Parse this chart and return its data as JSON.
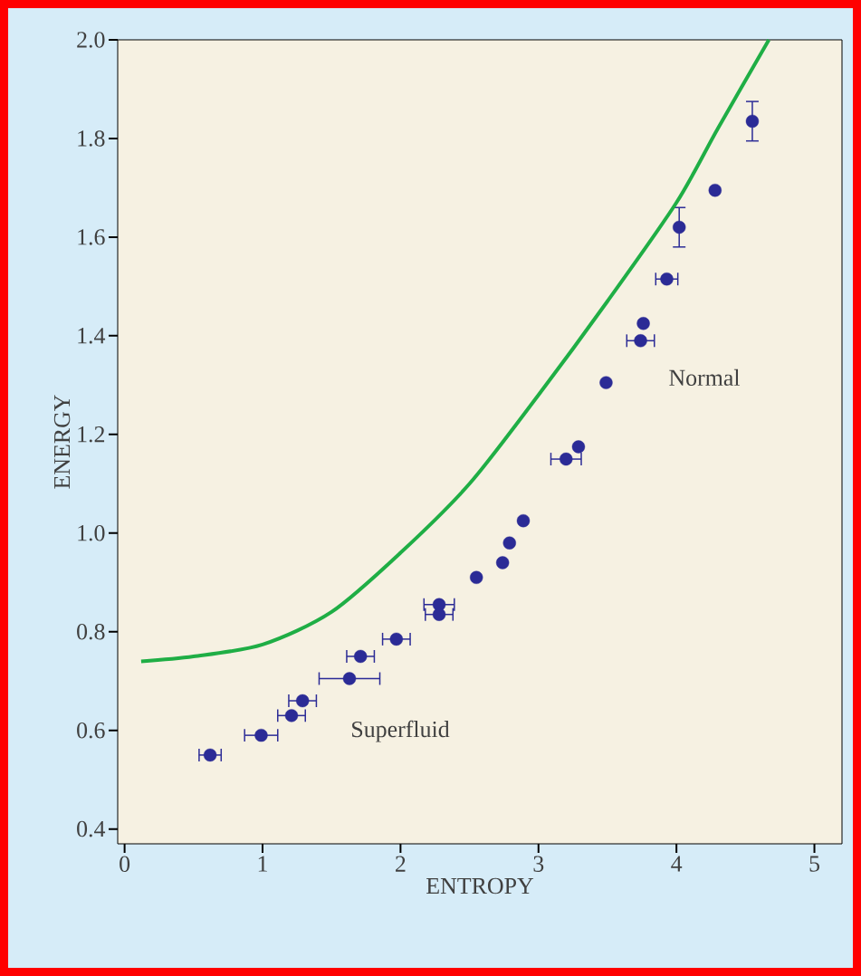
{
  "chart_data": {
    "type": "scatter",
    "xlabel": "ENTROPY",
    "ylabel": "ENERGY",
    "xlim": [
      -0.05,
      5.2
    ],
    "ylim": [
      0.37,
      2.0
    ],
    "xticks": [
      0,
      1,
      2,
      3,
      4,
      5
    ],
    "yticks": [
      {
        "value": 0.4,
        "label": "0.4"
      },
      {
        "value": 0.6,
        "label": "0.6"
      },
      {
        "value": 0.8,
        "label": "0.8"
      },
      {
        "value": 1.0,
        "label": "1.0"
      },
      {
        "value": 1.2,
        "label": "1.2"
      },
      {
        "value": 1.4,
        "label": "1.4"
      },
      {
        "value": 1.6,
        "label": "1.6"
      },
      {
        "value": 1.8,
        "label": "1.8"
      },
      {
        "value": 2.0,
        "label": "2.0"
      }
    ],
    "grid": false,
    "series": [
      {
        "color": "#2b2b96",
        "marker": "circle",
        "x": [
          0.62,
          0.99,
          1.21,
          1.29,
          1.63,
          1.71,
          1.97,
          2.28,
          2.28,
          2.55,
          2.74,
          2.79,
          2.89,
          3.2,
          3.29,
          3.49,
          3.74,
          3.76,
          3.93,
          4.02,
          4.28,
          4.55
        ],
        "values": [
          0.55,
          0.59,
          0.63,
          0.66,
          0.705,
          0.75,
          0.785,
          0.855,
          0.835,
          0.91,
          0.94,
          0.98,
          1.025,
          1.15,
          1.175,
          1.305,
          1.39,
          1.425,
          1.515,
          1.62,
          1.695,
          1.835
        ],
        "xerrors": [
          0.08,
          0.12,
          0.1,
          0.1,
          0.22,
          0.1,
          0.1,
          0.11,
          0.1,
          null,
          null,
          null,
          null,
          0.11,
          null,
          null,
          0.1,
          null,
          0.08,
          null,
          null,
          null
        ],
        "errors": [
          null,
          null,
          null,
          null,
          null,
          null,
          null,
          null,
          null,
          null,
          null,
          null,
          null,
          null,
          null,
          null,
          null,
          null,
          null,
          0.04,
          null,
          0.04
        ]
      },
      {
        "type": "line",
        "color": "#1fae45",
        "marker": "none",
        "x": [
          0.12,
          0.5,
          1.0,
          1.5,
          2.0,
          2.5,
          3.0,
          3.5,
          4.0,
          4.3,
          4.67
        ],
        "values": [
          0.74,
          0.75,
          0.774,
          0.84,
          0.96,
          1.1,
          1.28,
          1.47,
          1.67,
          1.82,
          2.0
        ]
      }
    ],
    "annotations": [
      "Superfluid",
      "Normal"
    ]
  }
}
